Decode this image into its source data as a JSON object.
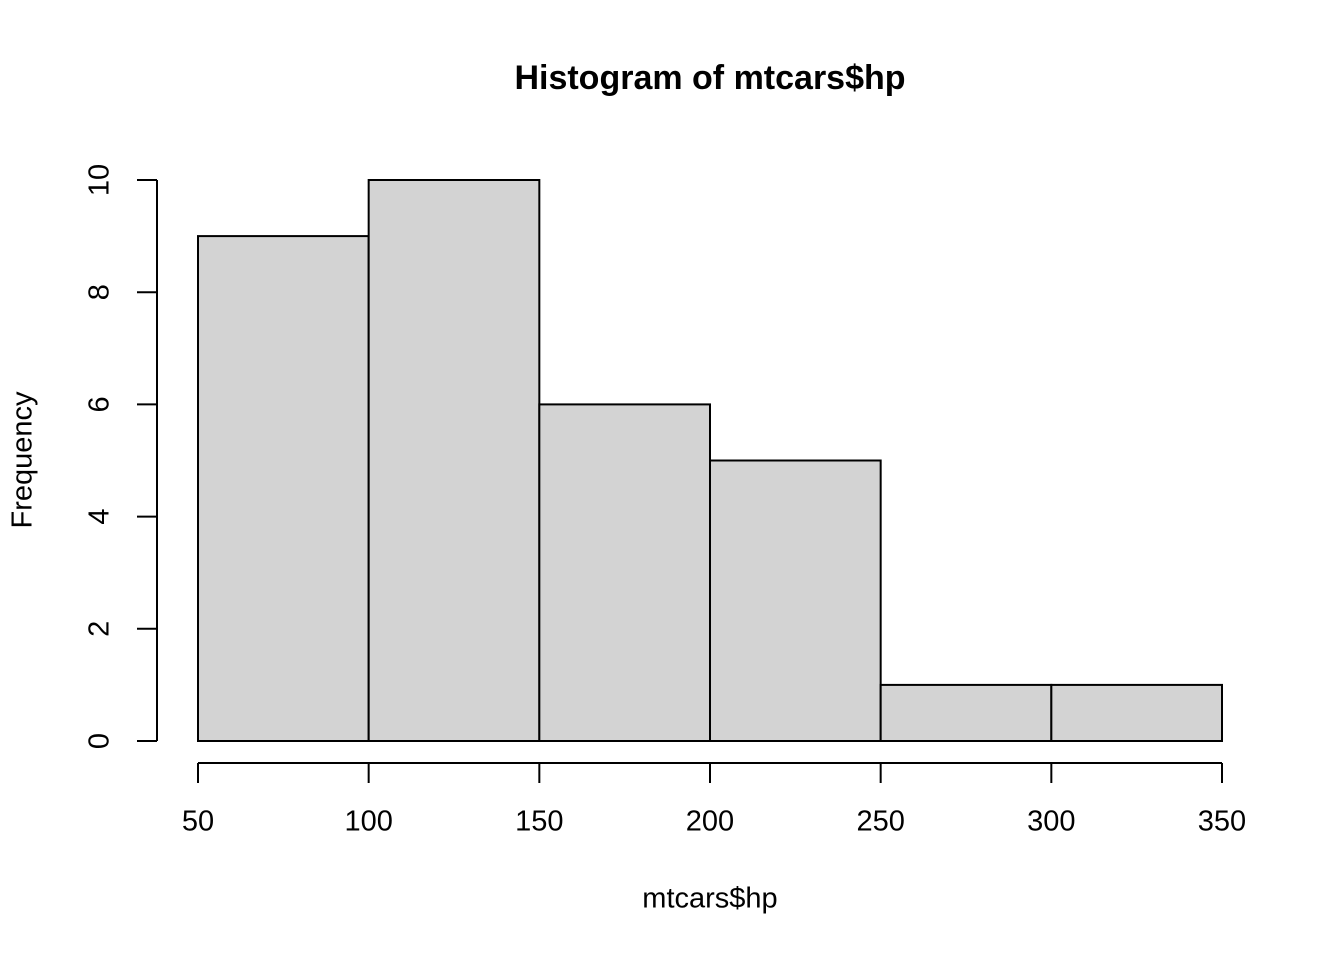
{
  "chart_data": {
    "type": "histogram",
    "title": "Histogram of mtcars$hp",
    "xlabel": "mtcars$hp",
    "ylabel": "Frequency",
    "bins": [
      50,
      100,
      150,
      200,
      250,
      300,
      350
    ],
    "values": [
      9,
      10,
      6,
      5,
      1,
      1
    ],
    "color": "#d3d3d3",
    "xlim": [
      50,
      350
    ],
    "xticks": [
      50,
      100,
      150,
      200,
      250,
      300,
      350
    ],
    "ylim": [
      0,
      10
    ],
    "yticks": [
      0,
      2,
      4,
      6,
      8,
      10
    ]
  }
}
